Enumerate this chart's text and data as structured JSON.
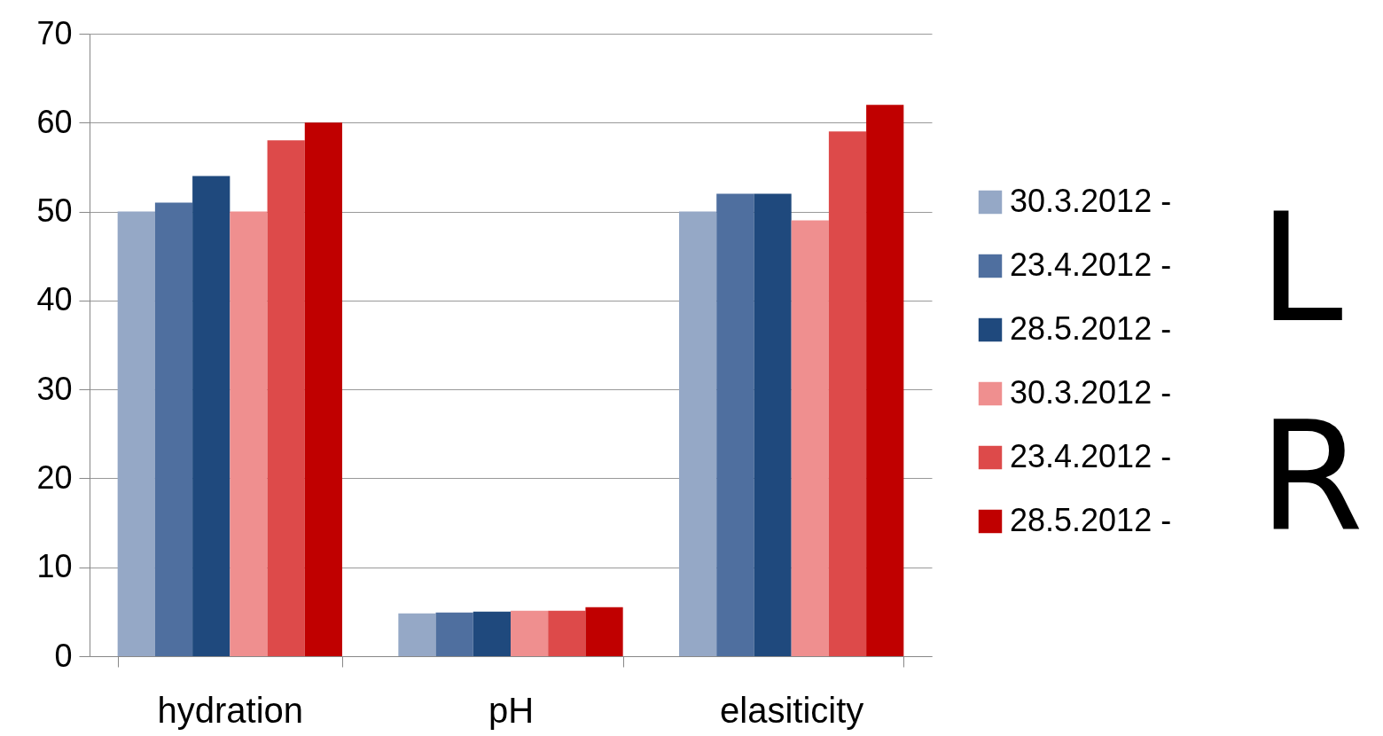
{
  "chart_data": {
    "type": "bar",
    "categories": [
      "hydration",
      "pH",
      "elasiticity"
    ],
    "series": [
      {
        "name": "30.3.2012 -",
        "color": "#95a8c6",
        "values": [
          50,
          4.8,
          50
        ]
      },
      {
        "name": "23.4.2012 -",
        "color": "#4f6f9f",
        "values": [
          51,
          4.9,
          52
        ]
      },
      {
        "name": "28.5.2012 -",
        "color": "#1f497d",
        "values": [
          54,
          5.0,
          52
        ]
      },
      {
        "name": "30.3.2012 -",
        "color": "#ef8f8f",
        "values": [
          50,
          5.1,
          49
        ]
      },
      {
        "name": "23.4.2012 -",
        "color": "#dd4a4a",
        "values": [
          58,
          5.1,
          59
        ]
      },
      {
        "name": "28.5.2012 -",
        "color": "#c00000",
        "values": [
          60,
          5.5,
          62
        ]
      }
    ],
    "ylim": [
      0,
      70
    ],
    "yticks": [
      0,
      10,
      20,
      30,
      40,
      50,
      60,
      70
    ],
    "grid": "y",
    "legend": "right",
    "annotations": [
      "L",
      "R"
    ]
  }
}
